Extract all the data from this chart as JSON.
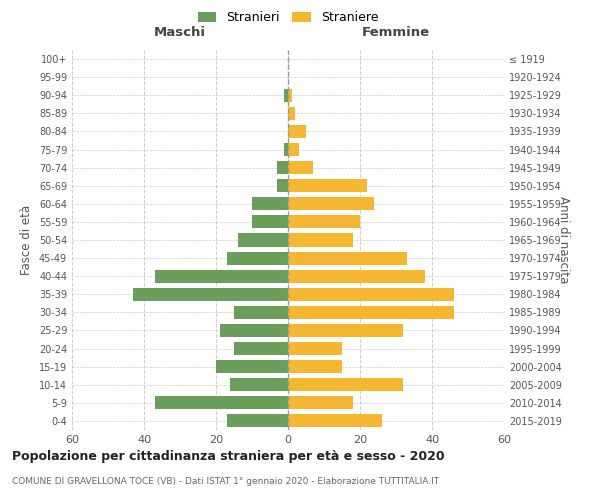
{
  "age_groups_bottom_to_top": [
    "0-4",
    "5-9",
    "10-14",
    "15-19",
    "20-24",
    "25-29",
    "30-34",
    "35-39",
    "40-44",
    "45-49",
    "50-54",
    "55-59",
    "60-64",
    "65-69",
    "70-74",
    "75-79",
    "80-84",
    "85-89",
    "90-94",
    "95-99",
    "100+"
  ],
  "birth_years_bottom_to_top": [
    "2015-2019",
    "2010-2014",
    "2005-2009",
    "2000-2004",
    "1995-1999",
    "1990-1994",
    "1985-1989",
    "1980-1984",
    "1975-1979",
    "1970-1974",
    "1965-1969",
    "1960-1964",
    "1955-1959",
    "1950-1954",
    "1945-1949",
    "1940-1944",
    "1935-1939",
    "1930-1934",
    "1925-1929",
    "1920-1924",
    "≤ 1919"
  ],
  "maschi_bottom_to_top": [
    17,
    37,
    16,
    20,
    15,
    19,
    15,
    43,
    37,
    17,
    14,
    10,
    10,
    3,
    3,
    1,
    0,
    0,
    1,
    0,
    0
  ],
  "femmine_bottom_to_top": [
    26,
    18,
    32,
    15,
    15,
    32,
    46,
    46,
    38,
    33,
    18,
    20,
    24,
    22,
    7,
    3,
    5,
    2,
    1,
    0,
    0
  ],
  "male_color": "#6a9e5a",
  "female_color": "#f5b731",
  "dashed_line_color": "#888888",
  "xlim": 60,
  "title": "Popolazione per cittadinanza straniera per età e sesso - 2020",
  "subtitle": "COMUNE DI GRAVELLONA TOCE (VB) - Dati ISTAT 1° gennaio 2020 - Elaborazione TUTTITALIA.IT",
  "ylabel_left": "Fasce di età",
  "ylabel_right": "Anni di nascita",
  "xlabel_maschi": "Maschi",
  "xlabel_femmine": "Femmine",
  "legend_stranieri": "Stranieri",
  "legend_straniere": "Straniere",
  "background_color": "#ffffff",
  "grid_color": "#cccccc"
}
